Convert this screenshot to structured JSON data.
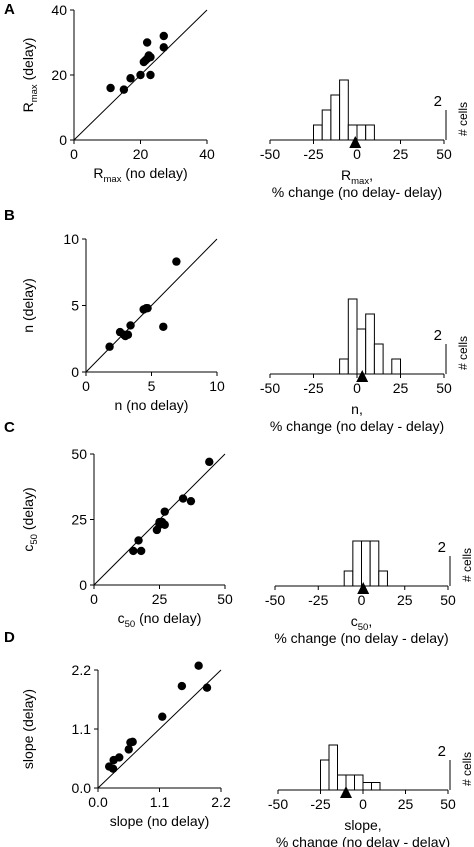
{
  "panels": [
    {
      "letter": "A",
      "scatter": {
        "type": "scatter",
        "xlim": [
          0,
          40
        ],
        "ylim": [
          0,
          40
        ],
        "xticks": [
          "0",
          "20",
          "40"
        ],
        "yticks": [
          "0",
          "20",
          "40"
        ],
        "xlabel_main": "R",
        "xlabel_sub": "max",
        "xlabel_tail": " (no delay)",
        "ylabel_main": "R",
        "ylabel_sub": "max",
        "ylabel_tail": " (delay)",
        "unity_line": true,
        "points": [
          [
            11,
            16
          ],
          [
            15,
            15.5
          ],
          [
            17,
            19
          ],
          [
            20,
            20
          ],
          [
            21,
            24
          ],
          [
            21.5,
            24.5
          ],
          [
            22,
            25
          ],
          [
            22,
            30
          ],
          [
            22.5,
            26
          ],
          [
            23,
            20
          ],
          [
            23,
            25.5
          ],
          [
            27,
            32
          ],
          [
            27,
            28.5
          ]
        ]
      },
      "histogram": {
        "type": "bar",
        "xlim": [
          -50,
          50
        ],
        "xticks": [
          "-50",
          "-25",
          "0",
          "25",
          "50"
        ],
        "bin_width": 5,
        "bin_edges": [
          -25,
          -20,
          -15,
          -10,
          -5,
          0,
          5,
          10
        ],
        "counts": [
          1,
          2,
          3,
          4,
          1,
          1,
          1
        ],
        "scale_label": "2",
        "scale_value": 2,
        "yunit": "# cells",
        "mean": -1,
        "xlabel_main": "R",
        "xlabel_sub": "max",
        "xlabel_tail": ",",
        "xlabel2": "% change (no delay- delay)"
      }
    },
    {
      "letter": "B",
      "scatter": {
        "type": "scatter",
        "xlim": [
          0,
          10
        ],
        "ylim": [
          0,
          10
        ],
        "xticks": [
          "0",
          "5",
          "10"
        ],
        "yticks": [
          "0",
          "5",
          "10"
        ],
        "xlabel_main": "n (no delay)",
        "xlabel_sub": "",
        "xlabel_tail": "",
        "ylabel_main": "n (delay)",
        "ylabel_sub": "",
        "ylabel_tail": "",
        "unity_line": true,
        "points": [
          [
            1.8,
            1.9
          ],
          [
            2.6,
            3.0
          ],
          [
            2.9,
            2.8
          ],
          [
            3.0,
            2.7
          ],
          [
            3.2,
            2.8
          ],
          [
            3.4,
            3.5
          ],
          [
            4.4,
            4.7
          ],
          [
            4.6,
            4.8
          ],
          [
            4.7,
            4.8
          ],
          [
            5.9,
            3.4
          ],
          [
            6.9,
            8.3
          ]
        ]
      },
      "histogram": {
        "type": "bar",
        "xlim": [
          -50,
          50
        ],
        "xticks": [
          "-50",
          "-25",
          "0",
          "25",
          "50"
        ],
        "bin_width": 5,
        "bin_edges": [
          -15,
          -10,
          -5,
          0,
          5,
          10,
          15,
          20,
          25
        ],
        "counts": [
          0,
          1,
          5,
          3,
          4,
          2,
          0,
          1
        ],
        "scale_label": "2",
        "scale_value": 2,
        "yunit": "# cells",
        "mean": 3,
        "xlabel_main": "n,",
        "xlabel_sub": "",
        "xlabel_tail": "",
        "xlabel2": "% change (no delay - delay)"
      }
    },
    {
      "letter": "C",
      "scatter": {
        "type": "scatter",
        "xlim": [
          0,
          50
        ],
        "ylim": [
          0,
          50
        ],
        "xticks": [
          "0",
          "25",
          "50"
        ],
        "yticks": [
          "0",
          "25",
          "50"
        ],
        "xlabel_main": "c",
        "xlabel_sub": "50",
        "xlabel_tail": " (no delay)",
        "ylabel_main": "c",
        "ylabel_sub": "50",
        "ylabel_tail": " (delay)",
        "unity_line": true,
        "points": [
          [
            15,
            13
          ],
          [
            17,
            17
          ],
          [
            18,
            13
          ],
          [
            24,
            21
          ],
          [
            25,
            23
          ],
          [
            25,
            24
          ],
          [
            26,
            24
          ],
          [
            27,
            23
          ],
          [
            27,
            28
          ],
          [
            34,
            33
          ],
          [
            37,
            32
          ],
          [
            44,
            47
          ]
        ]
      },
      "histogram": {
        "type": "bar",
        "xlim": [
          -50,
          50
        ],
        "xticks": [
          "-50",
          "-25",
          "0",
          "25",
          "50"
        ],
        "bin_width": 5,
        "bin_edges": [
          -10,
          -5,
          0,
          5,
          10,
          15
        ],
        "counts": [
          1,
          3,
          3,
          3,
          1
        ],
        "scale_label": "2",
        "scale_value": 2,
        "yunit": "# cells",
        "mean": 1,
        "xlabel_main": "c",
        "xlabel_sub": "50",
        "xlabel_tail": ",",
        "xlabel2": "% change (no delay - delay)"
      }
    },
    {
      "letter": "D",
      "scatter": {
        "type": "scatter",
        "xlim": [
          0,
          2.2
        ],
        "ylim": [
          0,
          2.2
        ],
        "xticks": [
          "0.0",
          "1.1",
          "2.2"
        ],
        "yticks": [
          "0.0",
          "1.1",
          "2.2"
        ],
        "xlabel_main": "slope (no delay)",
        "xlabel_sub": "",
        "xlabel_tail": "",
        "ylabel_main": "slope (delay)",
        "ylabel_sub": "",
        "ylabel_tail": "",
        "unity_line": true,
        "points": [
          [
            0.2,
            0.4
          ],
          [
            0.27,
            0.36
          ],
          [
            0.28,
            0.52
          ],
          [
            0.38,
            0.57
          ],
          [
            0.55,
            0.72
          ],
          [
            0.58,
            0.85
          ],
          [
            0.62,
            0.86
          ],
          [
            1.15,
            1.33
          ],
          [
            1.5,
            1.9
          ],
          [
            1.8,
            2.28
          ],
          [
            1.95,
            1.87
          ]
        ]
      },
      "histogram": {
        "type": "bar",
        "xlim": [
          -50,
          50
        ],
        "xticks": [
          "-50",
          "-25",
          "0",
          "25",
          "50"
        ],
        "bin_width": 5,
        "bin_edges": [
          -25,
          -20,
          -15,
          -10,
          -5,
          0,
          5,
          10
        ],
        "counts": [
          2,
          3,
          1,
          1,
          1,
          0.5,
          0.5
        ],
        "scale_label": "2",
        "scale_value": 2,
        "yunit": "# cells",
        "mean": -10,
        "xlabel_main": "slope,",
        "xlabel_sub": "",
        "xlabel_tail": "",
        "xlabel2": "% change (no delay - delay)"
      }
    }
  ]
}
